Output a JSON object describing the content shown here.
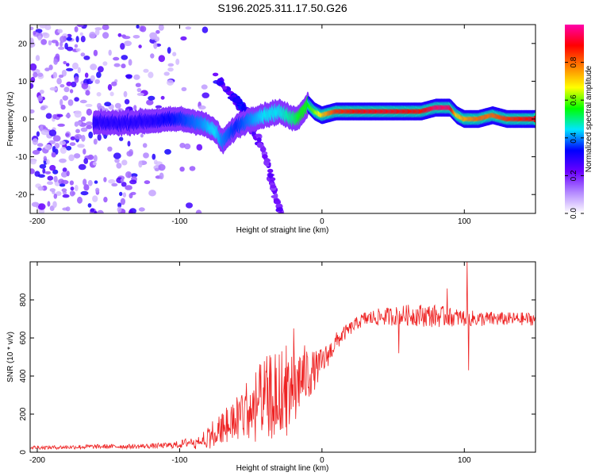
{
  "title": "S196.2025.311.17.50.G26",
  "chart_data": [
    {
      "type": "heatmap",
      "name": "spectrogram",
      "xlabel": "Height of straight line (km)",
      "ylabel": "Frequency (Hz)",
      "xlim": [
        -205,
        150
      ],
      "ylim": [
        -25,
        25
      ],
      "xticks": [
        -200,
        -100,
        0,
        100
      ],
      "xtick_labels": [
        "-200",
        "-100",
        "0",
        "100"
      ],
      "yticks": [
        -20,
        -10,
        0,
        10,
        20
      ],
      "ytick_labels": [
        "-20",
        "-10",
        "0",
        "10",
        "20"
      ],
      "colorbar": {
        "label": "Normalized spectral amplitude",
        "range": [
          0,
          1
        ],
        "ticks": [
          0.0,
          0.2,
          0.4,
          0.6,
          0.8
        ],
        "tick_labels": [
          "0.0",
          "0.2",
          "0.4",
          "0.6",
          "0.8"
        ],
        "colors": [
          "#ffffff",
          "#b388ff",
          "#6a00ff",
          "#0000ff",
          "#00e5ff",
          "#00ff00",
          "#ffff00",
          "#ff8000",
          "#ff0000",
          "#ff00aa"
        ]
      },
      "ridge": {
        "description_points_x": [
          -160,
          -140,
          -120,
          -100,
          -85,
          -75,
          -70,
          -60,
          -50,
          -40,
          -30,
          -20,
          -15,
          -10,
          -5,
          0,
          10,
          30,
          50,
          70,
          80,
          90,
          95,
          100,
          110,
          120,
          130,
          150
        ],
        "description_points_y": [
          -1,
          -1,
          -0.5,
          0,
          -1,
          -3,
          -6,
          -2,
          0,
          1,
          2,
          0,
          1,
          4,
          2,
          1,
          2,
          2,
          2,
          2,
          3,
          3,
          1,
          0,
          0,
          1,
          0,
          0
        ],
        "amplitude": [
          0.3,
          0.3,
          0.3,
          0.35,
          0.4,
          0.45,
          0.4,
          0.35,
          0.4,
          0.45,
          0.45,
          0.5,
          0.55,
          0.55,
          0.6,
          0.7,
          0.85,
          0.9,
          0.9,
          0.88,
          0.95,
          0.95,
          0.7,
          0.75,
          0.8,
          0.8,
          0.85,
          0.9
        ]
      },
      "side_branches": [
        {
          "x": [
            -75,
            -65,
            -55,
            -45
          ],
          "y": [
            12,
            7,
            1,
            -6
          ],
          "amplitude": 0.2
        },
        {
          "x": [
            -45,
            -38,
            -33,
            -28
          ],
          "y": [
            -4,
            -12,
            -20,
            -26
          ],
          "amplitude": 0.15
        },
        {
          "x": [
            -62,
            -55,
            -48
          ],
          "y": [
            6,
            3,
            0
          ],
          "amplitude": 0.25
        }
      ],
      "noise_region_x": [
        -205,
        -60
      ]
    },
    {
      "type": "line",
      "name": "snr",
      "xlabel": "Height of straight line (km)",
      "ylabel": "SNR (10 * v/v)",
      "xlim": [
        -205,
        150
      ],
      "ylim": [
        0,
        1000
      ],
      "xticks": [
        -200,
        -100,
        0,
        100
      ],
      "xtick_labels": [
        "-200",
        "-100",
        "0",
        "100"
      ],
      "yticks": [
        0,
        200,
        400,
        600,
        800
      ],
      "ytick_labels": [
        "0",
        "200",
        "400",
        "600",
        "800"
      ],
      "color": "#ee2222",
      "envelope": {
        "x": [
          -205,
          -190,
          -170,
          -150,
          -130,
          -110,
          -100,
          -90,
          -80,
          -70,
          -60,
          -50,
          -40,
          -30,
          -25,
          -20,
          -15,
          -10,
          -5,
          0,
          5,
          10,
          15,
          20,
          25,
          30,
          40,
          50,
          60,
          70,
          80,
          90,
          100,
          110,
          120,
          130,
          140,
          150
        ],
        "mean": [
          25,
          25,
          28,
          30,
          30,
          35,
          40,
          60,
          90,
          140,
          200,
          250,
          300,
          330,
          340,
          370,
          390,
          410,
          430,
          470,
          520,
          580,
          620,
          650,
          680,
          700,
          710,
          715,
          720,
          720,
          715,
          710,
          705,
          700,
          700,
          700,
          700,
          700
        ],
        "noise": [
          10,
          10,
          12,
          12,
          12,
          15,
          20,
          30,
          60,
          80,
          120,
          160,
          200,
          220,
          220,
          200,
          180,
          150,
          100,
          80,
          60,
          50,
          40,
          35,
          35,
          40,
          45,
          50,
          55,
          60,
          60,
          50,
          45,
          40,
          40,
          35,
          35,
          35
        ]
      },
      "spikes": [
        {
          "x": -20,
          "y": 650
        },
        {
          "x": -25,
          "y": 560
        },
        {
          "x": 54,
          "y": 520
        },
        {
          "x": 88,
          "y": 860
        },
        {
          "x": 102,
          "y": 1000
        },
        {
          "x": 103,
          "y": 430
        }
      ]
    }
  ]
}
